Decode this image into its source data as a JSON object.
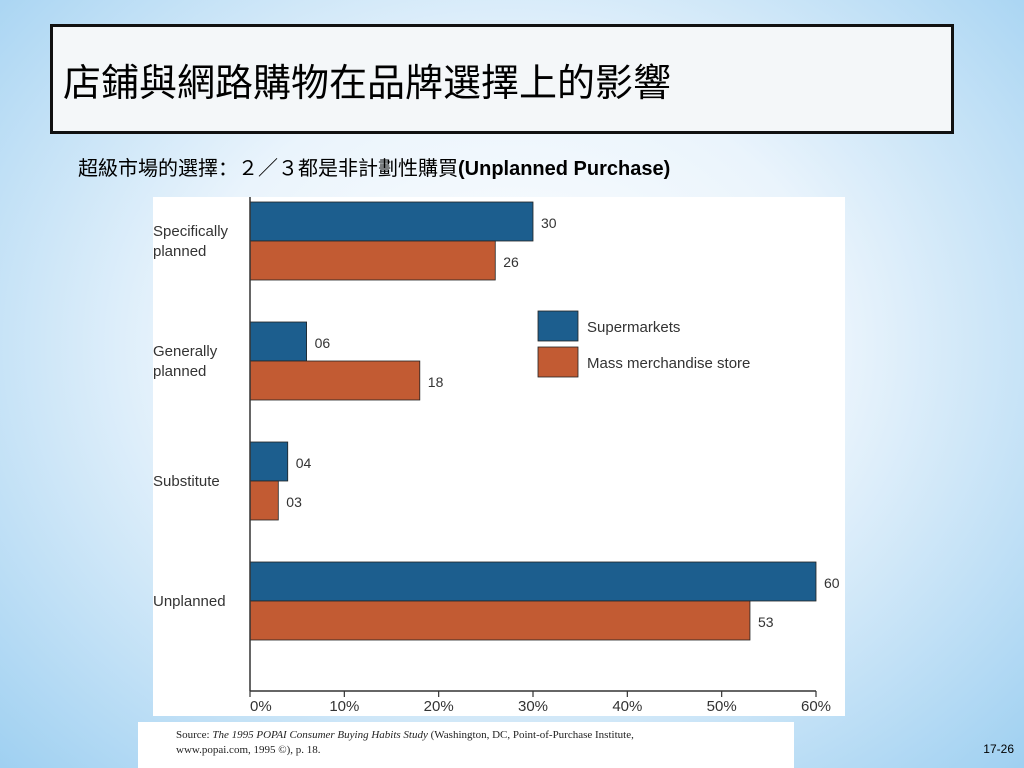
{
  "slide": {
    "title": "店鋪與網路購物在品牌選擇上的影響",
    "subtitle_zh": "超級市場的選擇：２／３都是非計劃性購買",
    "subtitle_en": "(Unplanned Purchase)",
    "source": {
      "prefix": "Source: ",
      "italic": "The 1995 POPAI Consumer Buying Habits Study",
      "rest": " (Washington, DC, Point-of-Purchase Institute,",
      "line2": "www.popai.com, 1995 ©), p. 18."
    },
    "page_number": "17-26"
  },
  "chart_data": {
    "type": "bar",
    "orientation": "horizontal",
    "categories": [
      [
        "Specifically",
        "planned"
      ],
      [
        "Generally",
        "planned"
      ],
      [
        "Substitute"
      ],
      [
        "Unplanned"
      ]
    ],
    "series": [
      {
        "name": "Supermarkets",
        "color": "#1c5e8e",
        "values": [
          30,
          6,
          4,
          60
        ],
        "labels": [
          "30",
          "06",
          "04",
          "60"
        ]
      },
      {
        "name": "Mass merchandise store",
        "color": "#c25b33",
        "values": [
          26,
          18,
          3,
          53
        ],
        "labels": [
          "26",
          "18",
          "03",
          "53"
        ]
      }
    ],
    "x_ticks": [
      "0%",
      "10%",
      "20%",
      "30%",
      "40%",
      "50%",
      "60%"
    ],
    "xlim": [
      0,
      60
    ],
    "legend_position": "right-middle",
    "grid": false
  }
}
